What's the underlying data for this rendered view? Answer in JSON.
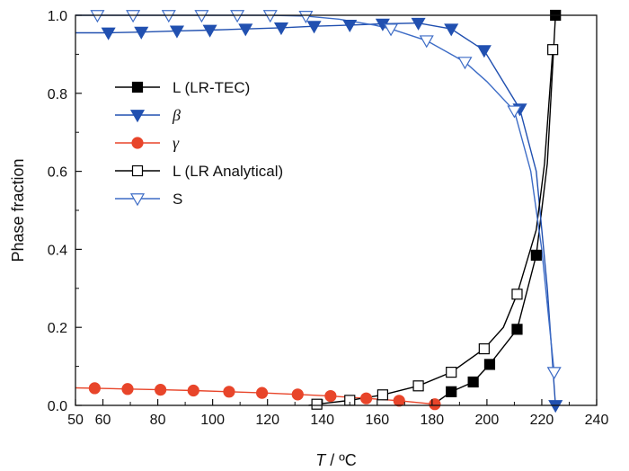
{
  "chart_data": {
    "type": "line",
    "xlabel_italic": "T",
    "xlabel_unit": " / ºC",
    "ylabel": "Phase fraction",
    "xlim": [
      50,
      240
    ],
    "ylim": [
      0,
      1.0
    ],
    "x_ticks": [
      50,
      60,
      80,
      100,
      120,
      140,
      160,
      180,
      200,
      220,
      240
    ],
    "x_tick_labels": [
      "50",
      "60",
      "80",
      "100",
      "120",
      "140",
      "160",
      "180",
      "200",
      "220",
      "240"
    ],
    "x_minor_ticks": [
      70,
      90,
      110,
      130,
      150,
      170,
      190,
      210,
      230
    ],
    "y_ticks": [
      0,
      0.2,
      0.4,
      0.6,
      0.8,
      1.0
    ],
    "y_tick_labels": [
      "0.0",
      "0.2",
      "0.4",
      "0.6",
      "0.8",
      "1.0"
    ],
    "legend_position": "left-center",
    "grid": false,
    "series": [
      {
        "name": "L (LR-TEC)",
        "italic": false,
        "color": "#000000",
        "marker": "square-filled",
        "line": [
          [
            180,
            0.0
          ],
          [
            187,
            0.035
          ],
          [
            195,
            0.06
          ],
          [
            201,
            0.105
          ],
          [
            211,
            0.195
          ],
          [
            218,
            0.385
          ],
          [
            222,
            0.62
          ],
          [
            225,
            1.0
          ]
        ],
        "markers": [
          [
            187,
            0.035
          ],
          [
            195,
            0.06
          ],
          [
            201,
            0.105
          ],
          [
            211,
            0.195
          ],
          [
            218,
            0.385
          ],
          [
            225,
            1.0
          ]
        ]
      },
      {
        "name": "β",
        "italic": true,
        "color": "#2150b0",
        "marker": "triangle-down-filled",
        "line": [
          [
            50,
            0.955
          ],
          [
            62,
            0.955
          ],
          [
            74,
            0.957
          ],
          [
            87,
            0.96
          ],
          [
            99,
            0.962
          ],
          [
            112,
            0.965
          ],
          [
            125,
            0.968
          ],
          [
            137,
            0.972
          ],
          [
            150,
            0.975
          ],
          [
            162,
            0.978
          ],
          [
            175,
            0.98
          ],
          [
            187,
            0.965
          ],
          [
            199,
            0.91
          ],
          [
            212,
            0.76
          ],
          [
            218,
            0.6
          ],
          [
            222,
            0.3
          ],
          [
            225,
            0.0
          ]
        ],
        "markers": [
          [
            62,
            0.955
          ],
          [
            74,
            0.957
          ],
          [
            87,
            0.96
          ],
          [
            99,
            0.962
          ],
          [
            112,
            0.965
          ],
          [
            125,
            0.968
          ],
          [
            137,
            0.972
          ],
          [
            150,
            0.975
          ],
          [
            162,
            0.978
          ],
          [
            175,
            0.98
          ],
          [
            187,
            0.965
          ],
          [
            199,
            0.91
          ],
          [
            212,
            0.76
          ],
          [
            225,
            0.0
          ]
        ]
      },
      {
        "name": "γ",
        "italic": true,
        "color": "#e8452a",
        "marker": "circle-filled",
        "line": [
          [
            50,
            0.045
          ],
          [
            57,
            0.044
          ],
          [
            69,
            0.042
          ],
          [
            81,
            0.04
          ],
          [
            93,
            0.038
          ],
          [
            106,
            0.035
          ],
          [
            118,
            0.032
          ],
          [
            131,
            0.028
          ],
          [
            143,
            0.024
          ],
          [
            156,
            0.018
          ],
          [
            168,
            0.012
          ],
          [
            181,
            0.003
          ]
        ],
        "markers": [
          [
            57,
            0.044
          ],
          [
            69,
            0.042
          ],
          [
            81,
            0.04
          ],
          [
            93,
            0.038
          ],
          [
            106,
            0.035
          ],
          [
            118,
            0.032
          ],
          [
            131,
            0.028
          ],
          [
            143,
            0.024
          ],
          [
            156,
            0.018
          ],
          [
            168,
            0.012
          ],
          [
            181,
            0.003
          ]
        ]
      },
      {
        "name": "L (LR Analytical)",
        "italic": false,
        "color": "#000000",
        "marker": "square-open",
        "line": [
          [
            135,
            0.0
          ],
          [
            138,
            0.003
          ],
          [
            150,
            0.013
          ],
          [
            162,
            0.027
          ],
          [
            175,
            0.05
          ],
          [
            187,
            0.085
          ],
          [
            199,
            0.145
          ],
          [
            206,
            0.2
          ],
          [
            211,
            0.285
          ],
          [
            218,
            0.45
          ],
          [
            221,
            0.62
          ],
          [
            224,
            0.912
          ]
        ],
        "markers": [
          [
            138,
            0.003
          ],
          [
            150,
            0.013
          ],
          [
            162,
            0.027
          ],
          [
            175,
            0.05
          ],
          [
            187,
            0.085
          ],
          [
            199,
            0.145
          ],
          [
            211,
            0.285
          ],
          [
            224,
            0.912
          ]
        ]
      },
      {
        "name": "S",
        "italic": false,
        "color": "#3d6cc6",
        "marker": "triangle-down-open",
        "line": [
          [
            50,
            1.0
          ],
          [
            58,
            1.0
          ],
          [
            71,
            1.0
          ],
          [
            84,
            1.0
          ],
          [
            96,
            1.0
          ],
          [
            109,
            1.0
          ],
          [
            121,
            1.0
          ],
          [
            134,
            0.998
          ],
          [
            146,
            0.99
          ],
          [
            159,
            0.975
          ],
          [
            165,
            0.965
          ],
          [
            178,
            0.935
          ],
          [
            192,
            0.88
          ],
          [
            200,
            0.83
          ],
          [
            210,
            0.755
          ],
          [
            216,
            0.6
          ],
          [
            220,
            0.4
          ],
          [
            224.5,
            0.085
          ]
        ],
        "markers": [
          [
            58,
            1.0
          ],
          [
            71,
            1.0
          ],
          [
            84,
            1.0
          ],
          [
            96,
            1.0
          ],
          [
            109,
            1.0
          ],
          [
            121,
            1.0
          ],
          [
            134,
            0.998
          ],
          [
            165,
            0.965
          ],
          [
            178,
            0.935
          ],
          [
            192,
            0.88
          ],
          [
            210,
            0.755
          ],
          [
            224.5,
            0.085
          ]
        ]
      }
    ]
  }
}
